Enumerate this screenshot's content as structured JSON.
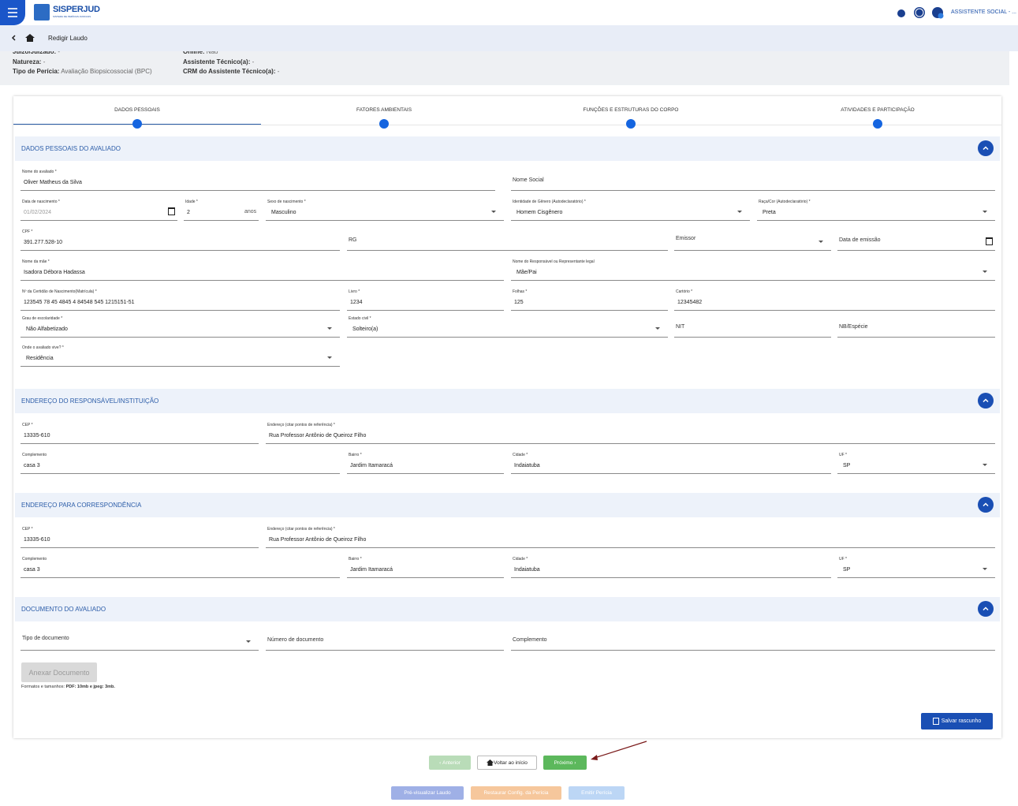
{
  "header": {
    "app_name": "SISPERJUD",
    "app_tagline": "SISTEMA DE PERÍCIAS JUDICIAIS",
    "user": "ASSISTENTE SOCIAL - ..."
  },
  "breadcrumb": {
    "title": "Redigir Laudo"
  },
  "summary": {
    "left": [
      {
        "label": "Juízo/Juizado:",
        "value": "-"
      },
      {
        "label": "Natureza:",
        "value": "-"
      },
      {
        "label": "Tipo de Perícia:",
        "value": "Avaliação Biopsicossocial (BPC)"
      }
    ],
    "right": [
      {
        "label": "Online:",
        "value": "Não"
      },
      {
        "label": "Assistente Técnico(a):",
        "value": "-"
      },
      {
        "label": "CRM do Assistente Técnico(a):",
        "value": "-"
      }
    ]
  },
  "steps": [
    "DADOS PESSOAIS",
    "FATORES AMBIENTAIS",
    "FUNÇÕES E ESTRUTURAS DO CORPO",
    "ATIVIDADES E PARTICIPAÇÃO"
  ],
  "sections": [
    {
      "title": "DADOS PESSOAIS DO AVALIADO",
      "rows": [
        [
          {
            "label": "Nome do avaliado *",
            "value": "Oliver Matheus da Silva"
          },
          {
            "placeholder": "Nome Social"
          }
        ],
        [
          {
            "label": "Data de nascimento *",
            "value": "01/02/2024"
          },
          {
            "label": "Idade *",
            "value": "2",
            "suffix": "anos"
          },
          {
            "label": "Sexo de nascimento *",
            "value": "Masculino"
          },
          {
            "label": "Identidade de Gênero (Autodeclaratório) *",
            "value": "Homem Cisgênero"
          },
          {
            "label": "Raça/Cor (Autodeclaratório) *",
            "value": "Preta"
          }
        ],
        [
          {
            "label": "CPF *",
            "value": "391.277.528-10"
          },
          {
            "placeholder": "RG"
          },
          {
            "placeholder": "Emissor"
          },
          {
            "placeholder": "Data de emissão"
          }
        ],
        [
          {
            "label": "Nome da mãe *",
            "value": "Isadora Débora Hadassa"
          },
          {
            "label": "Nome do Responsável ou Representante legal",
            "value": "Mãe/Pai"
          }
        ],
        [
          {
            "label": "Nº da Certidão de Nascimento(Matrícula) *",
            "value": "123545 78 45 4845 4 84548 545 1215151-51"
          },
          {
            "label": "Livro *",
            "value": "1234"
          },
          {
            "label": "Folhas *",
            "value": "125"
          },
          {
            "label": "Cartório *",
            "value": "12345482"
          }
        ],
        [
          {
            "label": "Grau de escolaridade *",
            "value": "Não Alfabetizado"
          },
          {
            "label": "Estado civil *",
            "value": "Solteiro(a)"
          },
          {
            "placeholder": "NIT"
          },
          {
            "placeholder": "NB/Espécie"
          }
        ],
        [
          {
            "label": "Onde o avaliado vive? *",
            "value": "Residência"
          }
        ]
      ]
    },
    {
      "title": "ENDEREÇO DO RESPONSÁVEL/INSTITUIÇÃO",
      "rows": [
        [
          {
            "label": "CEP *",
            "value": "13335-610"
          },
          {
            "label": "Endereço (citar pontos de referência) *",
            "value": "Rua Professor Antônio de Queiroz Filho"
          }
        ],
        [
          {
            "label": "Complemento",
            "value": "casa 3"
          },
          {
            "label": "Bairro *",
            "value": "Jardim Itamaracá"
          },
          {
            "label": "Cidade *",
            "value": "Indaiatuba"
          },
          {
            "label": "UF *",
            "value": "SP"
          }
        ]
      ]
    },
    {
      "title": "ENDEREÇO PARA CORRESPONDÊNCIA",
      "rows": [
        [
          {
            "label": "CEP *",
            "value": "13335-610"
          },
          {
            "label": "Endereço (citar pontos de referência) *",
            "value": "Rua Professor Antônio de Queiroz Filho"
          }
        ],
        [
          {
            "label": "Complemento",
            "value": "casa 3"
          },
          {
            "label": "Bairro *",
            "value": "Jardim Itamaracá"
          },
          {
            "label": "Cidade *",
            "value": "Indaiatuba"
          },
          {
            "label": "UF *",
            "value": "SP"
          }
        ]
      ]
    },
    {
      "title": "DOCUMENTO DO AVALIADO",
      "rows": [
        [
          {
            "placeholder": "Tipo de documento"
          },
          {
            "placeholder": "Número de documento"
          },
          {
            "placeholder": "Complemento"
          }
        ]
      ]
    }
  ],
  "attachment": {
    "button": "Anexar Documento",
    "hint_label": "Formatos e tamanhos:",
    "hint_value": "PDF: 10mb e jpeg: 3mb."
  },
  "save_button": "Salvar rascunho",
  "navigation": [
    "Anterior",
    "Voltar ao início",
    "Próximo"
  ],
  "actions": [
    "Pré-visualizar Laudo",
    "Restaurar Config. da Perícia",
    "Emitir Perícia"
  ]
}
